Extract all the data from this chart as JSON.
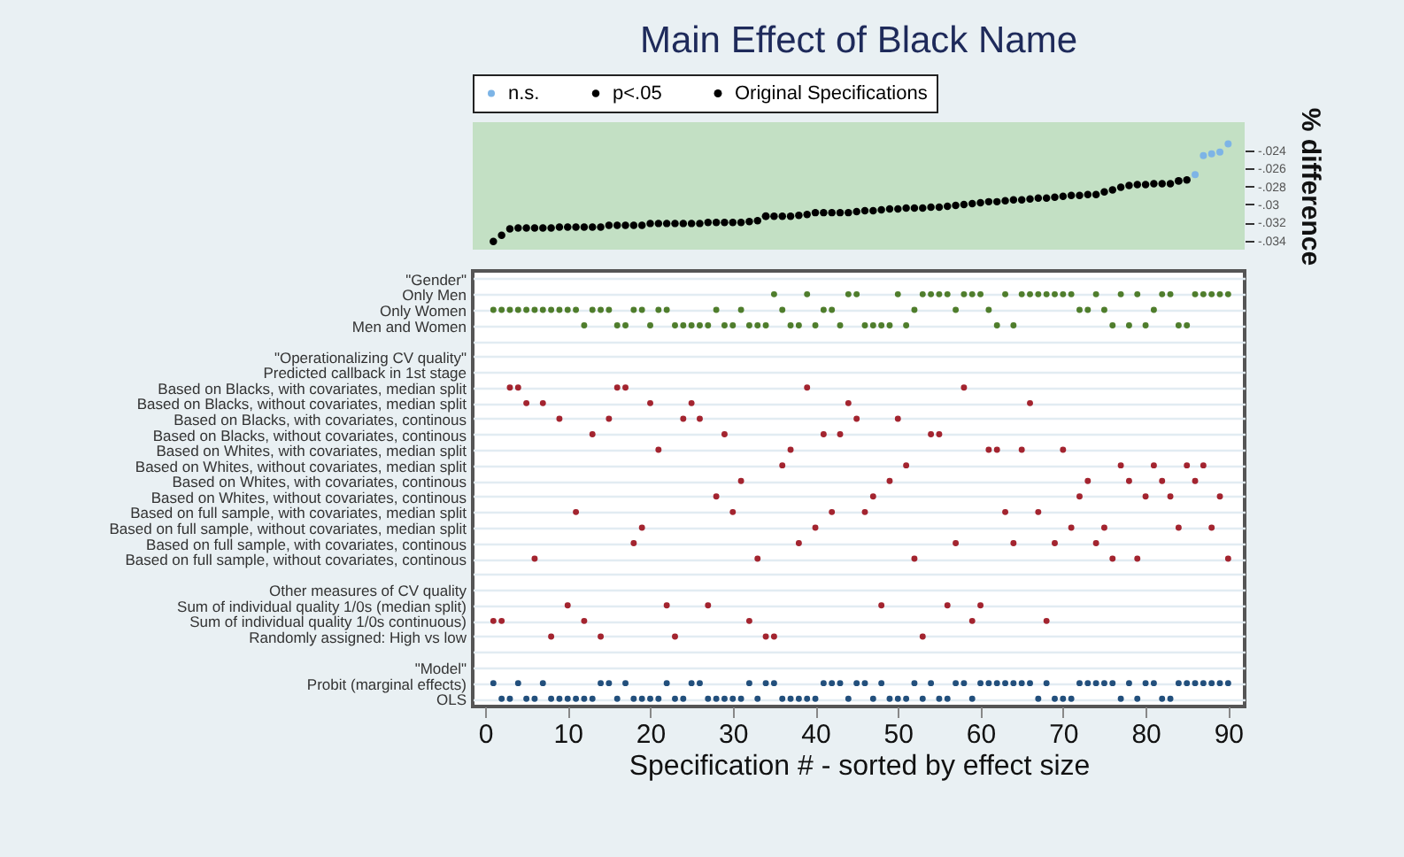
{
  "chart_data": [
    {
      "type": "scatter",
      "title": "Main Effect of Black Name",
      "ylabel": "% difference",
      "legend": "top",
      "marker": "circle",
      "tick_labels": "y",
      "xlim": [
        -1.5,
        92
      ],
      "ylim": [
        -0.035,
        -0.0209
      ],
      "yticks": [
        {
          "value": -0.034,
          "label": "-.034"
        },
        {
          "value": -0.032,
          "label": "-.032"
        },
        {
          "value": -0.03,
          "label": "-.03"
        },
        {
          "value": -0.028,
          "label": "-.028"
        },
        {
          "value": -0.026,
          "label": "-.026"
        },
        {
          "value": -0.024,
          "label": "-.024"
        }
      ],
      "series": [
        {
          "name": "n.s.",
          "color": "#7db4e6",
          "x": [
            86,
            87,
            88,
            89,
            90
          ],
          "values": [
            -0.0267,
            -0.0246,
            -0.0244,
            -0.0242,
            -0.0233
          ]
        },
        {
          "name": "p<.05",
          "color": "#000000",
          "x": [
            1,
            2,
            3,
            4,
            5,
            6,
            7,
            8,
            9,
            10,
            11,
            12,
            13,
            14,
            15,
            16,
            17,
            18,
            19,
            20,
            21,
            22,
            23,
            24,
            25,
            26,
            27,
            28,
            29,
            30,
            31,
            32,
            33,
            35,
            36,
            37,
            38,
            39,
            40,
            41,
            42,
            43,
            44,
            45,
            46,
            47,
            48,
            49,
            50,
            51,
            52,
            53,
            54,
            55,
            56,
            57,
            58,
            59,
            60,
            61,
            62,
            63,
            64,
            65,
            66,
            67,
            68,
            69,
            70,
            71,
            72,
            73,
            74,
            75,
            76,
            77,
            78,
            79,
            80,
            81,
            82,
            83,
            85
          ],
          "values": [
            -0.0341,
            -0.0334,
            -0.0327,
            -0.0326,
            -0.0326,
            -0.0326,
            -0.0326,
            -0.0326,
            -0.0325,
            -0.0325,
            -0.0325,
            -0.0325,
            -0.0325,
            -0.0325,
            -0.0323,
            -0.0323,
            -0.0323,
            -0.0323,
            -0.0323,
            -0.0321,
            -0.0321,
            -0.0321,
            -0.0321,
            -0.0321,
            -0.0321,
            -0.0321,
            -0.032,
            -0.032,
            -0.032,
            -0.032,
            -0.032,
            -0.0319,
            -0.0318,
            -0.0313,
            -0.0313,
            -0.0313,
            -0.0312,
            -0.0311,
            -0.0309,
            -0.0309,
            -0.0309,
            -0.0309,
            -0.0309,
            -0.0308,
            -0.0307,
            -0.0307,
            -0.0306,
            -0.0305,
            -0.0305,
            -0.0304,
            -0.0304,
            -0.0304,
            -0.0303,
            -0.0303,
            -0.0302,
            -0.0301,
            -0.03,
            -0.0299,
            -0.0298,
            -0.0297,
            -0.0297,
            -0.0296,
            -0.0295,
            -0.0295,
            -0.0294,
            -0.0293,
            -0.0293,
            -0.0292,
            -0.0291,
            -0.029,
            -0.029,
            -0.0289,
            -0.0289,
            -0.0286,
            -0.0284,
            -0.0281,
            -0.0279,
            -0.0278,
            -0.0278,
            -0.0277,
            -0.0277,
            -0.0277,
            -0.0273
          ]
        },
        {
          "name": "Original Specifications",
          "color": "#000000",
          "x": [
            34,
            84
          ],
          "values": [
            -0.0313,
            -0.0274
          ]
        }
      ]
    },
    {
      "type": "scatter",
      "orientation": "horizontal",
      "xlabel": "Specification # - sorted by effect size",
      "xlim": [
        -1.5,
        92
      ],
      "xticks": [
        0,
        10,
        20,
        30,
        40,
        50,
        60,
        70,
        80,
        90
      ],
      "grid": "y",
      "categories": [
        "\"Gender\"",
        "Only Men",
        "Only Women",
        "Men and Women",
        null,
        "\"Operationalizing CV quality\"",
        "Predicted callback in 1st stage",
        "Based on Blacks, with    covariates, median split",
        "Based on Blacks, without covariates, median split",
        "Based on Blacks, with    covariates, continous",
        "Based on Blacks, without covariates, continous",
        "Based on Whites, with    covariates, median split",
        "Based on Whites, without covariates, median split",
        "Based on Whites, with    covariates, continous",
        "Based on Whites, without covariates, continous",
        "Based on full sample, with    covariates, median split",
        "Based on full sample, without covariates, median split",
        "Based on full sample, with    covariates, continous",
        "Based on full sample, without covariates, continous",
        null,
        "Other measures of CV quality",
        "Sum of individual quality 1/0s (median split)",
        "Sum of individual quality 1/0s continuous)",
        "Randomly assigned: High vs low",
        null,
        "\"Model\"",
        "Probit (marginal effects)",
        "OLS"
      ],
      "series": [
        {
          "color": "#4f7d2c",
          "values": [
            35,
            39,
            44,
            45,
            50,
            53,
            54,
            55,
            56,
            58,
            59,
            60,
            63,
            65,
            66,
            67,
            68,
            69,
            70,
            71,
            74,
            77,
            79,
            82,
            83,
            86,
            87,
            88,
            89,
            90
          ],
          "x": [
            "Only Men",
            "Only Men",
            "Only Men",
            "Only Men",
            "Only Men",
            "Only Men",
            "Only Men",
            "Only Men",
            "Only Men",
            "Only Men",
            "Only Men",
            "Only Men",
            "Only Men",
            "Only Men",
            "Only Men",
            "Only Men",
            "Only Men",
            "Only Men",
            "Only Men",
            "Only Men",
            "Only Men",
            "Only Men",
            "Only Men",
            "Only Men",
            "Only Men",
            "Only Men",
            "Only Men",
            "Only Men",
            "Only Men",
            "Only Men"
          ]
        },
        {
          "color": "#4f7d2c",
          "values": [
            1,
            2,
            3,
            4,
            5,
            6,
            7,
            8,
            9,
            10,
            11,
            13,
            14,
            15,
            18,
            19,
            21,
            22,
            28,
            31,
            36,
            41,
            42,
            52,
            57,
            61,
            72,
            73,
            75,
            81
          ],
          "x": [
            "Only Women",
            "Only Women",
            "Only Women",
            "Only Women",
            "Only Women",
            "Only Women",
            "Only Women",
            "Only Women",
            "Only Women",
            "Only Women",
            "Only Women",
            "Only Women",
            "Only Women",
            "Only Women",
            "Only Women",
            "Only Women",
            "Only Women",
            "Only Women",
            "Only Women",
            "Only Women",
            "Only Women",
            "Only Women",
            "Only Women",
            "Only Women",
            "Only Women",
            "Only Women",
            "Only Women",
            "Only Women",
            "Only Women",
            "Only Women"
          ]
        },
        {
          "color": "#4f7d2c",
          "values": [
            12,
            16,
            17,
            20,
            23,
            24,
            25,
            26,
            27,
            29,
            30,
            32,
            33,
            34,
            37,
            38,
            40,
            43,
            46,
            47,
            48,
            49,
            51,
            62,
            64,
            76,
            78,
            80,
            84,
            85
          ],
          "x": [
            "Men and Women",
            "Men and Women",
            "Men and Women",
            "Men and Women",
            "Men and Women",
            "Men and Women",
            "Men and Women",
            "Men and Women",
            "Men and Women",
            "Men and Women",
            "Men and Women",
            "Men and Women",
            "Men and Women",
            "Men and Women",
            "Men and Women",
            "Men and Women",
            "Men and Women",
            "Men and Women",
            "Men and Women",
            "Men and Women",
            "Men and Women",
            "Men and Women",
            "Men and Women",
            "Men and Women",
            "Men and Women",
            "Men and Women",
            "Men and Women",
            "Men and Women",
            "Men and Women",
            "Men and Women"
          ]
        },
        {
          "color": "#a3242f",
          "values": [
            3,
            4,
            16,
            17,
            39,
            58
          ],
          "x": [
            "Based on Blacks, with    covariates, median split",
            "Based on Blacks, with    covariates, median split",
            "Based on Blacks, with    covariates, median split",
            "Based on Blacks, with    covariates, median split",
            "Based on Blacks, with    covariates, median split",
            "Based on Blacks, with    covariates, median split"
          ]
        },
        {
          "color": "#a3242f",
          "values": [
            5,
            7,
            20,
            25,
            44,
            66
          ],
          "x": [
            "Based on Blacks, without covariates, median split",
            "Based on Blacks, without covariates, median split",
            "Based on Blacks, without covariates, median split",
            "Based on Blacks, without covariates, median split",
            "Based on Blacks, without covariates, median split",
            "Based on Blacks, without covariates, median split"
          ]
        },
        {
          "color": "#a3242f",
          "values": [
            9,
            15,
            24,
            26,
            45,
            50
          ],
          "x": [
            "Based on Blacks, with    covariates, continous",
            "Based on Blacks, with    covariates, continous",
            "Based on Blacks, with    covariates, continous",
            "Based on Blacks, with    covariates, continous",
            "Based on Blacks, with    covariates, continous",
            "Based on Blacks, with    covariates, continous"
          ]
        },
        {
          "color": "#a3242f",
          "values": [
            13,
            29,
            41,
            43,
            54,
            55
          ],
          "x": [
            "Based on Blacks, without covariates, continous",
            "Based on Blacks, without covariates, continous",
            "Based on Blacks, without covariates, continous",
            "Based on Blacks, without covariates, continous",
            "Based on Blacks, without covariates, continous",
            "Based on Blacks, without covariates, continous"
          ]
        },
        {
          "color": "#a3242f",
          "values": [
            21,
            37,
            61,
            62,
            65,
            70
          ],
          "x": [
            "Based on Whites, with    covariates, median split",
            "Based on Whites, with    covariates, median split",
            "Based on Whites, with    covariates, median split",
            "Based on Whites, with    covariates, median split",
            "Based on Whites, with    covariates, median split",
            "Based on Whites, with    covariates, median split"
          ]
        },
        {
          "color": "#a3242f",
          "values": [
            36,
            51,
            77,
            81,
            85,
            87
          ],
          "x": [
            "Based on Whites, without covariates, median split",
            "Based on Whites, without covariates, median split",
            "Based on Whites, without covariates, median split",
            "Based on Whites, without covariates, median split",
            "Based on Whites, without covariates, median split",
            "Based on Whites, without covariates, median split"
          ]
        },
        {
          "color": "#a3242f",
          "values": [
            31,
            49,
            73,
            78,
            82,
            86
          ],
          "x": [
            "Based on Whites, with    covariates, continous",
            "Based on Whites, with    covariates, continous",
            "Based on Whites, with    covariates, continous",
            "Based on Whites, with    covariates, continous",
            "Based on Whites, with    covariates, continous",
            "Based on Whites, with    covariates, continous"
          ]
        },
        {
          "color": "#a3242f",
          "values": [
            28,
            47,
            72,
            80,
            83,
            89
          ],
          "x": [
            "Based on Whites, without covariates, continous",
            "Based on Whites, without covariates, continous",
            "Based on Whites, without covariates, continous",
            "Based on Whites, without covariates, continous",
            "Based on Whites, without covariates, continous",
            "Based on Whites, without covariates, continous"
          ]
        },
        {
          "color": "#a3242f",
          "values": [
            11,
            30,
            42,
            46,
            63,
            67
          ],
          "x": [
            "Based on full sample, with    covariates, median split",
            "Based on full sample, with    covariates, median split",
            "Based on full sample, with    covariates, median split",
            "Based on full sample, with    covariates, median split",
            "Based on full sample, with    covariates, median split",
            "Based on full sample, with    covariates, median split"
          ]
        },
        {
          "color": "#a3242f",
          "values": [
            19,
            40,
            71,
            75,
            84,
            88
          ],
          "x": [
            "Based on full sample, without covariates, median split",
            "Based on full sample, without covariates, median split",
            "Based on full sample, without covariates, median split",
            "Based on full sample, without covariates, median split",
            "Based on full sample, without covariates, median split",
            "Based on full sample, without covariates, median split"
          ]
        },
        {
          "color": "#a3242f",
          "values": [
            18,
            38,
            57,
            64,
            69,
            74
          ],
          "x": [
            "Based on full sample, with    covariates, continous",
            "Based on full sample, with    covariates, continous",
            "Based on full sample, with    covariates, continous",
            "Based on full sample, with    covariates, continous",
            "Based on full sample, with    covariates, continous",
            "Based on full sample, with    covariates, continous"
          ]
        },
        {
          "color": "#a3242f",
          "values": [
            6,
            33,
            52,
            76,
            79,
            90
          ],
          "x": [
            "Based on full sample, without covariates, continous",
            "Based on full sample, without covariates, continous",
            "Based on full sample, without covariates, continous",
            "Based on full sample, without covariates, continous",
            "Based on full sample, without covariates, continous",
            "Based on full sample, without covariates, continous"
          ]
        },
        {
          "color": "#a3242f",
          "values": [
            10,
            22,
            27,
            48,
            56,
            60
          ],
          "x": [
            "Sum of individual quality 1/0s (median split)",
            "Sum of individual quality 1/0s (median split)",
            "Sum of individual quality 1/0s (median split)",
            "Sum of individual quality 1/0s (median split)",
            "Sum of individual quality 1/0s (median split)",
            "Sum of individual quality 1/0s (median split)"
          ]
        },
        {
          "color": "#a3242f",
          "values": [
            1,
            2,
            12,
            32,
            59,
            68
          ],
          "x": [
            "Sum of individual quality 1/0s continuous)",
            "Sum of individual quality 1/0s continuous)",
            "Sum of individual quality 1/0s continuous)",
            "Sum of individual quality 1/0s continuous)",
            "Sum of individual quality 1/0s continuous)",
            "Sum of individual quality 1/0s continuous)"
          ]
        },
        {
          "color": "#a3242f",
          "values": [
            8,
            14,
            23,
            34,
            35,
            53
          ],
          "x": [
            "Randomly assigned: High vs low",
            "Randomly assigned: High vs low",
            "Randomly assigned: High vs low",
            "Randomly assigned: High vs low",
            "Randomly assigned: High vs low",
            "Randomly assigned: High vs low"
          ]
        },
        {
          "color": "#224f7c",
          "values": [
            1,
            4,
            7,
            14,
            15,
            17,
            22,
            25,
            26,
            32,
            34,
            35,
            41,
            42,
            43,
            45,
            46,
            48,
            52,
            54,
            57,
            58,
            60,
            61,
            62,
            63,
            64,
            65,
            66,
            68,
            72,
            73,
            74,
            75,
            76,
            78,
            80,
            81,
            84,
            85,
            86,
            87,
            88,
            89,
            90
          ],
          "x": [
            "Probit (marginal effects)",
            "Probit (marginal effects)",
            "Probit (marginal effects)",
            "Probit (marginal effects)",
            "Probit (marginal effects)",
            "Probit (marginal effects)",
            "Probit (marginal effects)",
            "Probit (marginal effects)",
            "Probit (marginal effects)",
            "Probit (marginal effects)",
            "Probit (marginal effects)",
            "Probit (marginal effects)",
            "Probit (marginal effects)",
            "Probit (marginal effects)",
            "Probit (marginal effects)",
            "Probit (marginal effects)",
            "Probit (marginal effects)",
            "Probit (marginal effects)",
            "Probit (marginal effects)",
            "Probit (marginal effects)",
            "Probit (marginal effects)",
            "Probit (marginal effects)",
            "Probit (marginal effects)",
            "Probit (marginal effects)",
            "Probit (marginal effects)",
            "Probit (marginal effects)",
            "Probit (marginal effects)",
            "Probit (marginal effects)",
            "Probit (marginal effects)",
            "Probit (marginal effects)",
            "Probit (marginal effects)",
            "Probit (marginal effects)",
            "Probit (marginal effects)",
            "Probit (marginal effects)",
            "Probit (marginal effects)",
            "Probit (marginal effects)",
            "Probit (marginal effects)",
            "Probit (marginal effects)",
            "Probit (marginal effects)",
            "Probit (marginal effects)",
            "Probit (marginal effects)",
            "Probit (marginal effects)",
            "Probit (marginal effects)",
            "Probit (marginal effects)",
            "Probit (marginal effects)"
          ]
        },
        {
          "color": "#224f7c",
          "values": [
            2,
            3,
            5,
            6,
            8,
            9,
            10,
            11,
            12,
            13,
            16,
            18,
            19,
            20,
            21,
            23,
            24,
            27,
            28,
            29,
            30,
            31,
            33,
            36,
            37,
            38,
            39,
            40,
            44,
            47,
            49,
            50,
            51,
            53,
            55,
            56,
            59,
            67,
            69,
            70,
            71,
            77,
            79,
            82,
            83
          ],
          "x": [
            "OLS",
            "OLS",
            "OLS",
            "OLS",
            "OLS",
            "OLS",
            "OLS",
            "OLS",
            "OLS",
            "OLS",
            "OLS",
            "OLS",
            "OLS",
            "OLS",
            "OLS",
            "OLS",
            "OLS",
            "OLS",
            "OLS",
            "OLS",
            "OLS",
            "OLS",
            "OLS",
            "OLS",
            "OLS",
            "OLS",
            "OLS",
            "OLS",
            "OLS",
            "OLS",
            "OLS",
            "OLS",
            "OLS",
            "OLS",
            "OLS",
            "OLS",
            "OLS",
            "OLS",
            "OLS",
            "OLS",
            "OLS",
            "OLS",
            "OLS",
            "OLS",
            "OLS"
          ]
        }
      ]
    }
  ]
}
